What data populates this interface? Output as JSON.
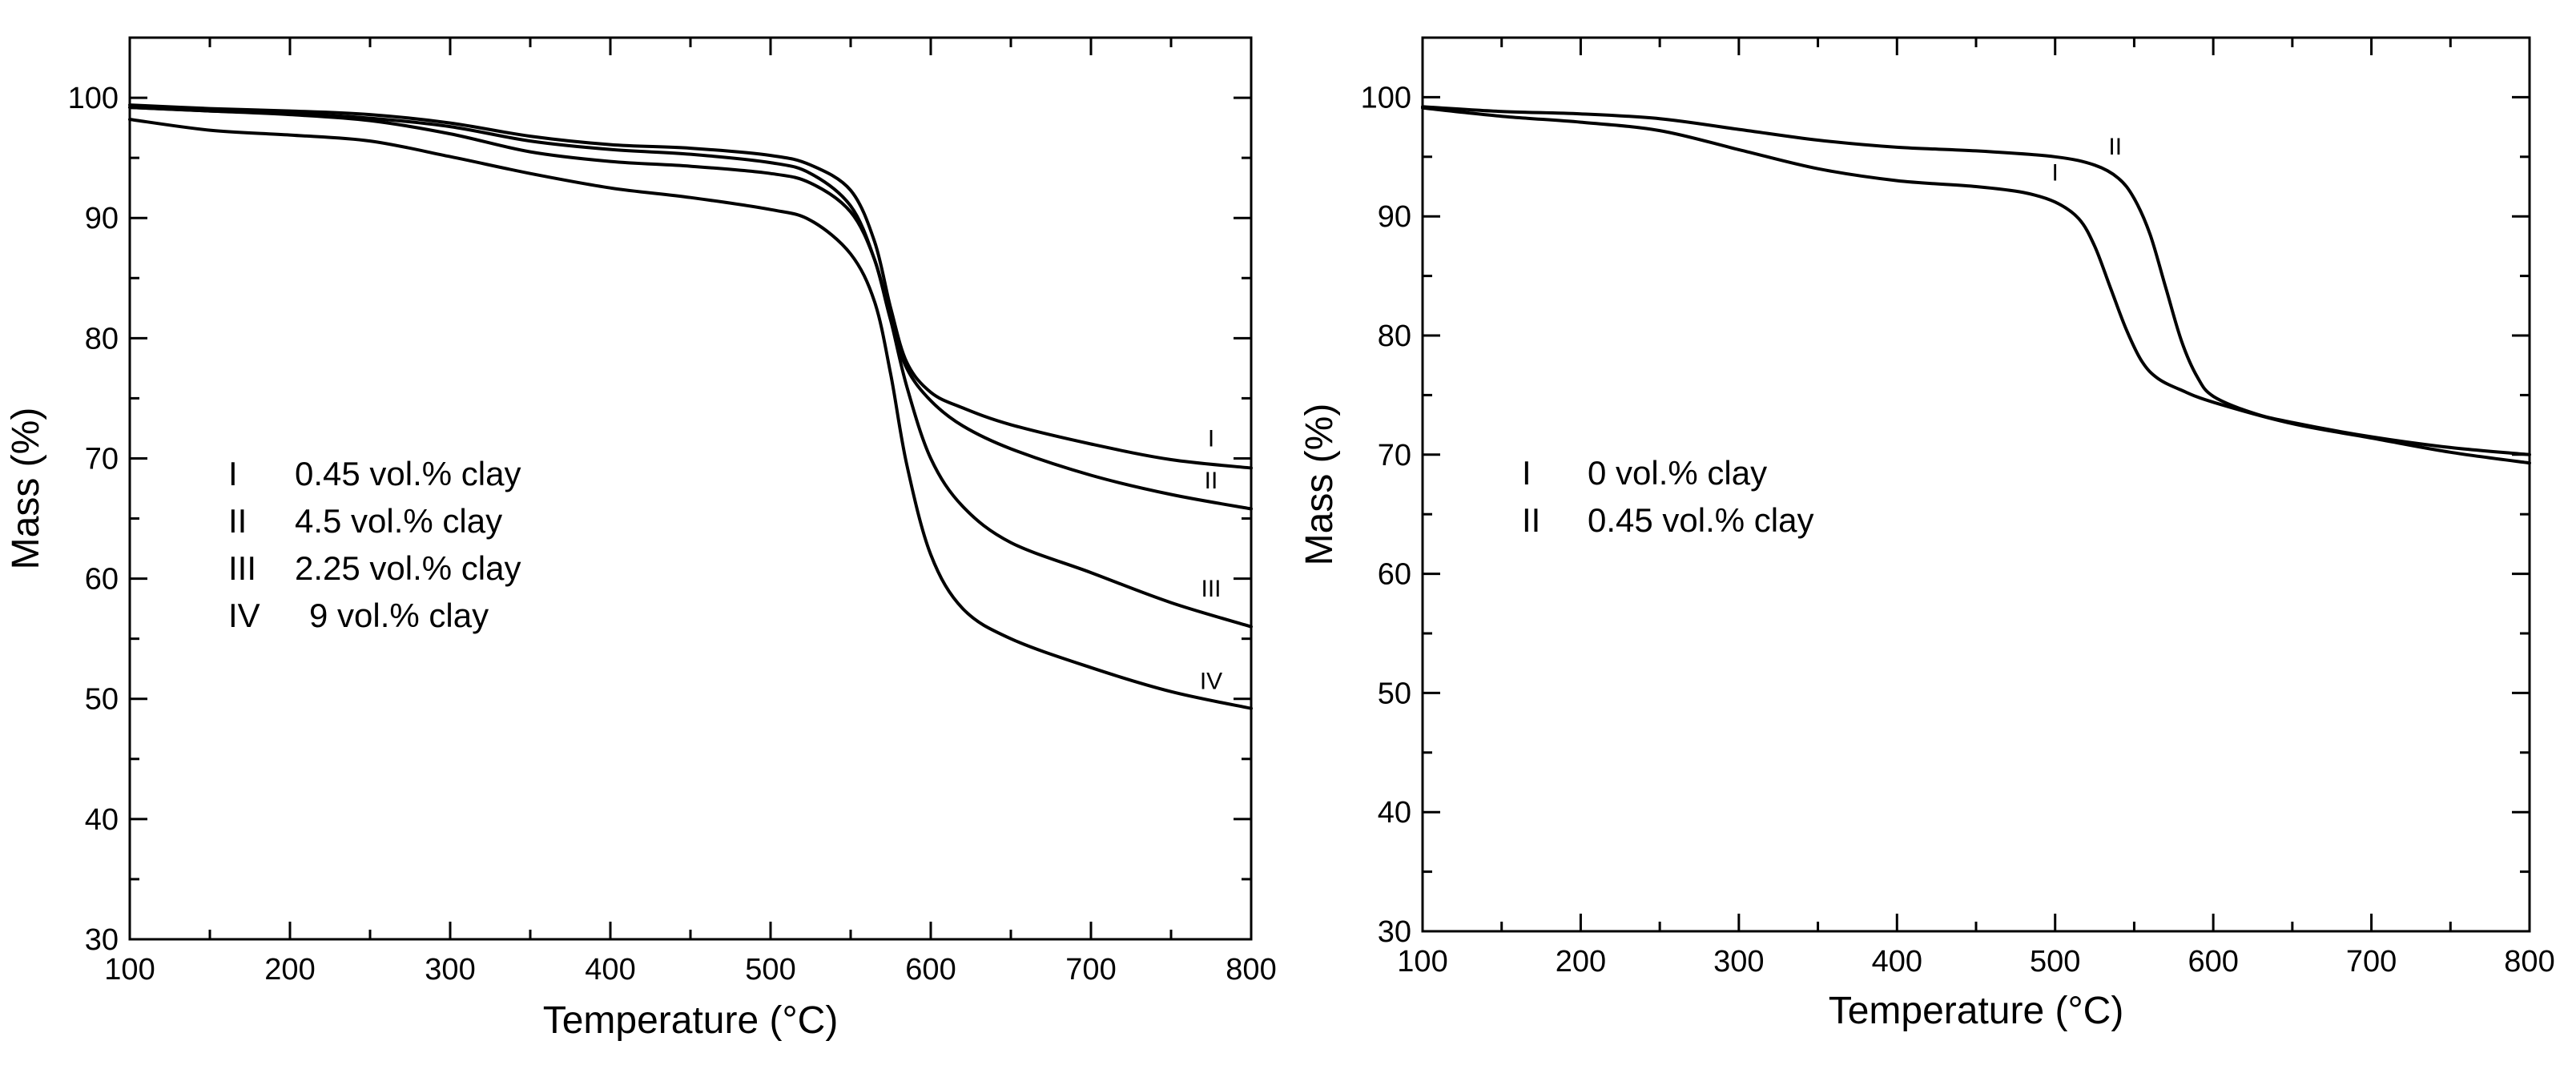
{
  "chart_data": [
    {
      "type": "line",
      "xlabel": "Temperature (°C)",
      "ylabel": "Mass  (%)",
      "xlim": [
        100,
        800
      ],
      "ylim": [
        30,
        105
      ],
      "x_ticks": [
        100,
        200,
        300,
        400,
        500,
        600,
        700,
        800
      ],
      "y_ticks": [
        30,
        40,
        50,
        60,
        70,
        80,
        90,
        100
      ],
      "grid": false,
      "legend_position": "middle-left",
      "legend": [
        {
          "id": "I",
          "text": "0.45 vol.% clay"
        },
        {
          "id": "II",
          "text": "4.5 vol.% clay"
        },
        {
          "id": "III",
          "text": "2.25 vol.% clay"
        },
        {
          "id": "IV",
          "text": "9 vol.% clay"
        }
      ],
      "series": [
        {
          "name": "I",
          "label_at": [
            775,
            71
          ],
          "x": [
            100,
            150,
            200,
            250,
            300,
            350,
            400,
            450,
            500,
            525,
            550,
            565,
            575,
            585,
            600,
            620,
            650,
            700,
            750,
            800
          ],
          "values": [
            99.4,
            99.1,
            98.9,
            98.6,
            97.9,
            96.8,
            96.1,
            95.8,
            95.2,
            94.4,
            92.3,
            88.0,
            82.5,
            78.0,
            75.5,
            74.2,
            72.8,
            71.2,
            69.9,
            69.2
          ]
        },
        {
          "name": "II",
          "label_at": [
            775,
            67.5
          ],
          "x": [
            100,
            150,
            200,
            250,
            300,
            350,
            400,
            450,
            500,
            525,
            550,
            565,
            575,
            585,
            600,
            620,
            650,
            700,
            750,
            800
          ],
          "values": [
            99.2,
            98.9,
            98.7,
            98.3,
            97.6,
            96.4,
            95.7,
            95.3,
            94.6,
            93.7,
            91.0,
            86.5,
            81.5,
            77.5,
            74.8,
            72.7,
            70.8,
            68.6,
            67.0,
            65.8
          ]
        },
        {
          "name": "III",
          "label_at": [
            775,
            58.5
          ],
          "x": [
            100,
            150,
            200,
            250,
            300,
            350,
            400,
            450,
            500,
            525,
            550,
            565,
            575,
            585,
            600,
            620,
            650,
            700,
            750,
            800
          ],
          "values": [
            99.2,
            98.9,
            98.6,
            98.1,
            97.0,
            95.5,
            94.7,
            94.3,
            93.7,
            92.9,
            90.5,
            86.5,
            81.5,
            76.0,
            70.0,
            66.0,
            63.0,
            60.5,
            58.0,
            56.0
          ]
        },
        {
          "name": "IV",
          "label_at": [
            775,
            50.8
          ],
          "x": [
            100,
            150,
            200,
            250,
            300,
            350,
            400,
            450,
            500,
            525,
            550,
            565,
            575,
            585,
            600,
            620,
            650,
            700,
            750,
            800
          ],
          "values": [
            98.2,
            97.3,
            96.9,
            96.4,
            95.1,
            93.7,
            92.5,
            91.7,
            90.7,
            89.8,
            87.0,
            83.0,
            77.0,
            69.5,
            62.0,
            57.5,
            55.0,
            52.6,
            50.6,
            49.2
          ]
        }
      ]
    },
    {
      "type": "line",
      "xlabel": "Temperature (°C)",
      "ylabel": "Mass  (%)",
      "xlim": [
        100,
        800
      ],
      "ylim": [
        30,
        105
      ],
      "x_ticks": [
        100,
        200,
        300,
        400,
        500,
        600,
        700,
        800
      ],
      "y_ticks": [
        30,
        40,
        50,
        60,
        70,
        80,
        90,
        100
      ],
      "grid": false,
      "legend_position": "middle-left",
      "legend": [
        {
          "id": "I",
          "text": "0 vol.% clay"
        },
        {
          "id": "II",
          "text": "0.45 vol.% clay"
        }
      ],
      "series": [
        {
          "name": "I",
          "label_at": [
            500,
            93
          ],
          "x": [
            100,
            150,
            200,
            250,
            300,
            350,
            400,
            450,
            480,
            500,
            515,
            525,
            535,
            545,
            555,
            565,
            580,
            600,
            650,
            700,
            750,
            800
          ],
          "values": [
            99.1,
            98.4,
            97.9,
            97.2,
            95.6,
            94.0,
            93.0,
            92.5,
            92.0,
            91.2,
            89.8,
            87.5,
            84.0,
            80.5,
            77.8,
            76.4,
            75.4,
            74.4,
            72.6,
            71.4,
            70.2,
            69.3
          ]
        },
        {
          "name": "II",
          "label_at": [
            538,
            95.2
          ],
          "x": [
            100,
            150,
            200,
            250,
            300,
            350,
            400,
            450,
            500,
            525,
            540,
            550,
            560,
            570,
            580,
            590,
            600,
            625,
            650,
            700,
            750,
            800
          ],
          "values": [
            99.2,
            98.8,
            98.6,
            98.2,
            97.3,
            96.4,
            95.8,
            95.5,
            95.0,
            94.3,
            93.2,
            91.5,
            88.5,
            84.0,
            79.5,
            76.5,
            74.9,
            73.5,
            72.7,
            71.5,
            70.6,
            70.0
          ]
        }
      ]
    }
  ]
}
